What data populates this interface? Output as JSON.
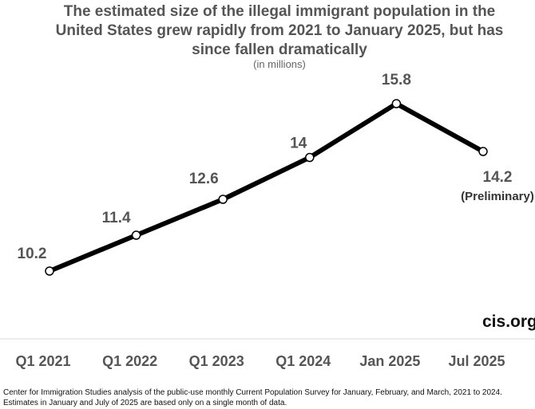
{
  "chart_data": {
    "type": "line",
    "title": "The estimated size of the illegal immigrant population in the United States grew rapidly from 2021 to January 2025, but has since fallen dramatically",
    "title_lines": [
      "The estimated size of the illegal immigrant population in the",
      "United States grew rapidly from 2021 to January 2025, but has",
      "since fallen dramatically"
    ],
    "subtitle": "(in millions)",
    "categories": [
      "Q1 2021",
      "Q1 2022",
      "Q1 2023",
      "Q1 2024",
      "Jan 2025",
      "Jul 2025"
    ],
    "values": [
      10.2,
      11.4,
      12.6,
      14,
      15.8,
      14.2
    ],
    "data_labels": [
      "10.2",
      "11.4",
      "12.6",
      "14",
      "15.8",
      "14.2"
    ],
    "annotation": "(Preliminary)",
    "xlabel": "",
    "ylabel": "",
    "ylim": [
      8.1,
      17.1
    ],
    "grid": false,
    "line_color": "#000000",
    "label_color": "#555555"
  },
  "brand": "cis.org",
  "footnote": [
    "Center for Immigration Studies analysis of the public-use monthly Current Population Survey for January, February, and March, 2021 to 2024.",
    "Estimates in January and July of 2025 are based only on a single month of data."
  ]
}
